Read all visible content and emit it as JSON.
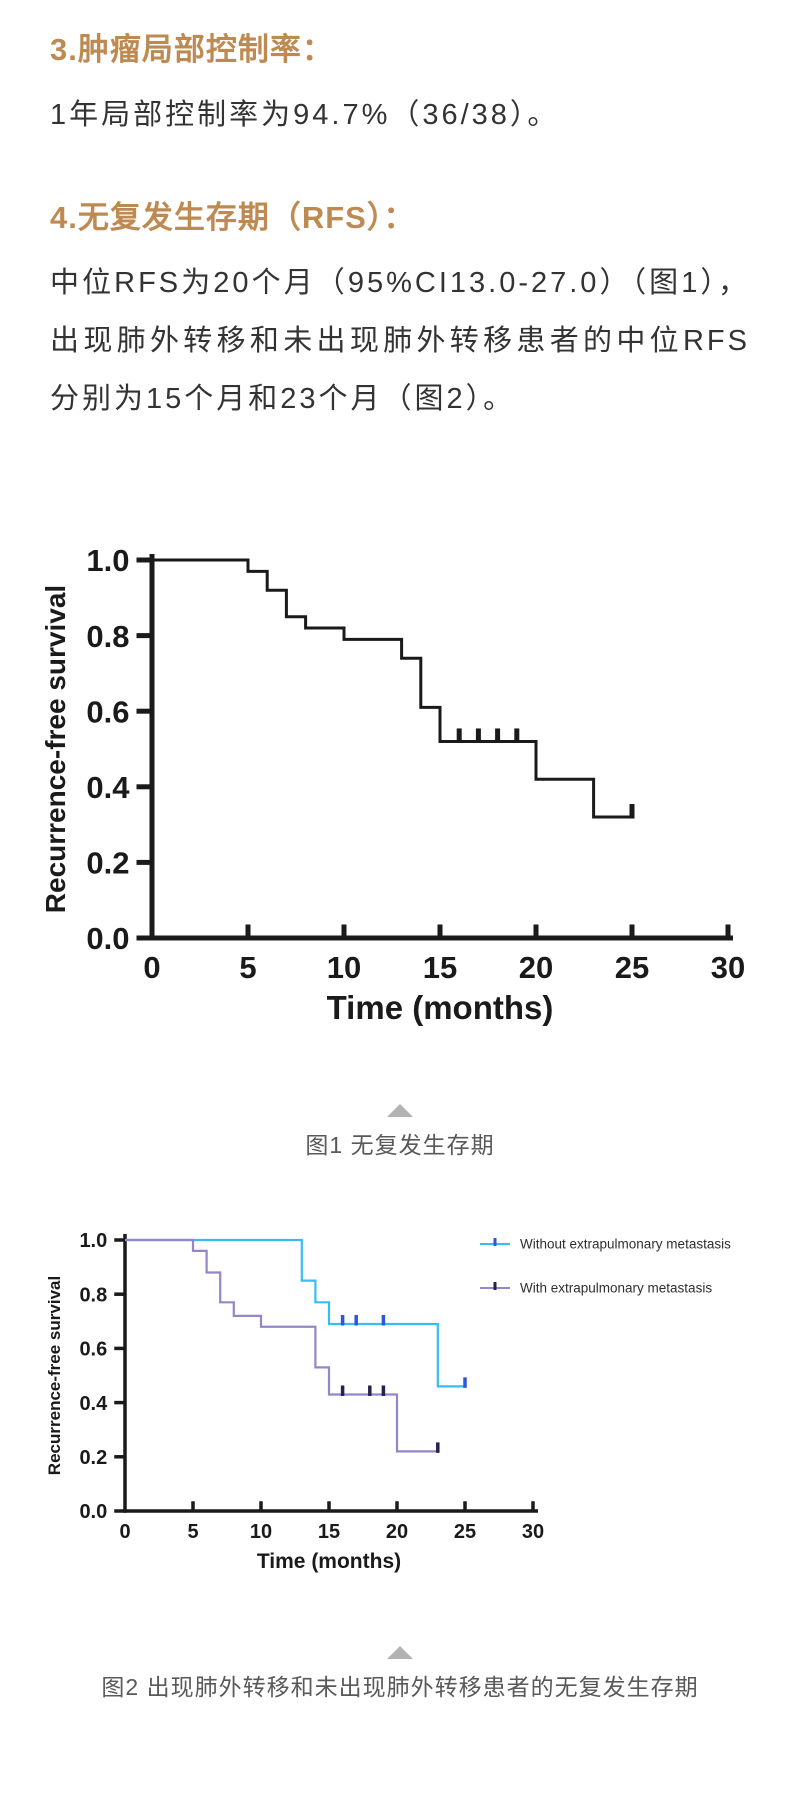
{
  "article": {
    "heading_3": "3.肿瘤局部控制率：",
    "para_3": "1年局部控制率为94.7%（36/38）。",
    "heading_4": "4.无复发生存期（RFS）：",
    "para_4": "中位RFS为20个月（95%CI13.0-27.0）（图1），出现肺外转移和未出现肺外转移患者的中位RFS分别为15个月和23个月（图2）。",
    "caption_1": "图1 无复发生存期",
    "caption_2": "图2 出现肺外转移和未出现肺外转移患者的无复发生存期"
  },
  "colors": {
    "heading": "#be8a52",
    "body_text": "#333333",
    "caption_text": "#595959",
    "triangle_icon": "#b3b3b3",
    "chart_ink": "#1a1a1a",
    "series_without_metastasis": "#38bdf3",
    "series_without_censor": "#2e55de",
    "series_with_metastasis": "#9585cb",
    "series_with_censor": "#262052"
  },
  "chart_data": [
    {
      "type": "line",
      "subtype": "kaplan-meier-step",
      "title": "",
      "xlabel": "Time (months)",
      "ylabel": "Recurrence-free survival",
      "xlim": [
        0,
        30
      ],
      "ylim": [
        0,
        1
      ],
      "xticks": [
        0,
        5,
        10,
        15,
        20,
        25,
        30
      ],
      "yticks": [
        0.0,
        0.2,
        0.4,
        0.6,
        0.8,
        1.0
      ],
      "grid": false,
      "legend_position": "none",
      "series": [
        {
          "name": "",
          "color": "#1a1a1a",
          "censor_color": "#1a1a1a",
          "start": [
            0,
            1.0
          ],
          "drops": [
            [
              5,
              0.97
            ],
            [
              6,
              0.92
            ],
            [
              7,
              0.85
            ],
            [
              8,
              0.82
            ],
            [
              10,
              0.79
            ],
            [
              13,
              0.74
            ],
            [
              14,
              0.61
            ],
            [
              15,
              0.52
            ],
            [
              20,
              0.42
            ],
            [
              23,
              0.32
            ]
          ],
          "end_x": 25,
          "censors": [
            [
              16,
              0.52
            ],
            [
              17,
              0.52
            ],
            [
              18,
              0.52
            ],
            [
              19,
              0.52
            ],
            [
              25,
              0.32
            ]
          ]
        }
      ]
    },
    {
      "type": "line",
      "subtype": "kaplan-meier-step",
      "title": "",
      "xlabel": "Time (months)",
      "ylabel": "Recurrence-free survival",
      "xlim": [
        0,
        30
      ],
      "ylim": [
        0,
        1
      ],
      "xticks": [
        0,
        5,
        10,
        15,
        20,
        25,
        30
      ],
      "yticks": [
        0.0,
        0.2,
        0.4,
        0.6,
        0.8,
        1.0
      ],
      "grid": false,
      "legend_position": "top-right",
      "series": [
        {
          "name": "Without extrapulmonary metastasis",
          "color": "#38bdf3",
          "censor_color": "#2e55de",
          "start": [
            0,
            1.0
          ],
          "drops": [
            [
              13,
              0.85
            ],
            [
              14,
              0.77
            ],
            [
              15,
              0.69
            ],
            [
              23,
              0.46
            ]
          ],
          "end_x": 25,
          "censors": [
            [
              16,
              0.69
            ],
            [
              17,
              0.69
            ],
            [
              19,
              0.69
            ],
            [
              25,
              0.46
            ]
          ]
        },
        {
          "name": "With extrapulmonary metastasis",
          "color": "#9585cb",
          "censor_color": "#262052",
          "start": [
            0,
            1.0
          ],
          "drops": [
            [
              5,
              0.96
            ],
            [
              6,
              0.88
            ],
            [
              7,
              0.77
            ],
            [
              8,
              0.72
            ],
            [
              10,
              0.68
            ],
            [
              14,
              0.53
            ],
            [
              15,
              0.43
            ],
            [
              20,
              0.22
            ]
          ],
          "end_x": 23,
          "censors": [
            [
              16,
              0.43
            ],
            [
              18,
              0.43
            ],
            [
              19,
              0.43
            ],
            [
              23,
              0.22
            ]
          ]
        }
      ]
    }
  ]
}
